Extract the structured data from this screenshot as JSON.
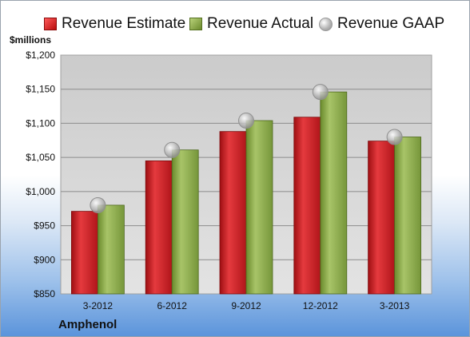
{
  "legend": {
    "estimate": "Revenue Estimate",
    "actual": "Revenue Actual",
    "gaap": "Revenue GAAP"
  },
  "units_label": "$millions",
  "company": "Amphenol",
  "colors": {
    "estimate": "#d11f24",
    "actual": "#8aa94b",
    "gaap": "#b0b0b0",
    "plot_background_top": "#c8c8c8",
    "plot_background_bottom": "#e2e2e2"
  },
  "chart_data": {
    "type": "bar",
    "categories": [
      "3-2012",
      "6-2012",
      "9-2012",
      "12-2012",
      "3-2013"
    ],
    "series": [
      {
        "name": "Revenue Estimate",
        "values": [
          971,
          1045,
          1088,
          1109,
          1074
        ]
      },
      {
        "name": "Revenue Actual",
        "values": [
          980,
          1061,
          1104,
          1146,
          1080
        ]
      },
      {
        "name": "Revenue GAAP",
        "values": [
          980,
          1061,
          1104,
          1146,
          1080
        ]
      }
    ],
    "ylabel": "$millions",
    "ylim": [
      850,
      1200
    ],
    "yticks": [
      "$850",
      "$900",
      "$950",
      "$1,000",
      "$1,050",
      "$1,100",
      "$1,150",
      "$1,200"
    ],
    "grid": true,
    "legend_position": "top"
  }
}
